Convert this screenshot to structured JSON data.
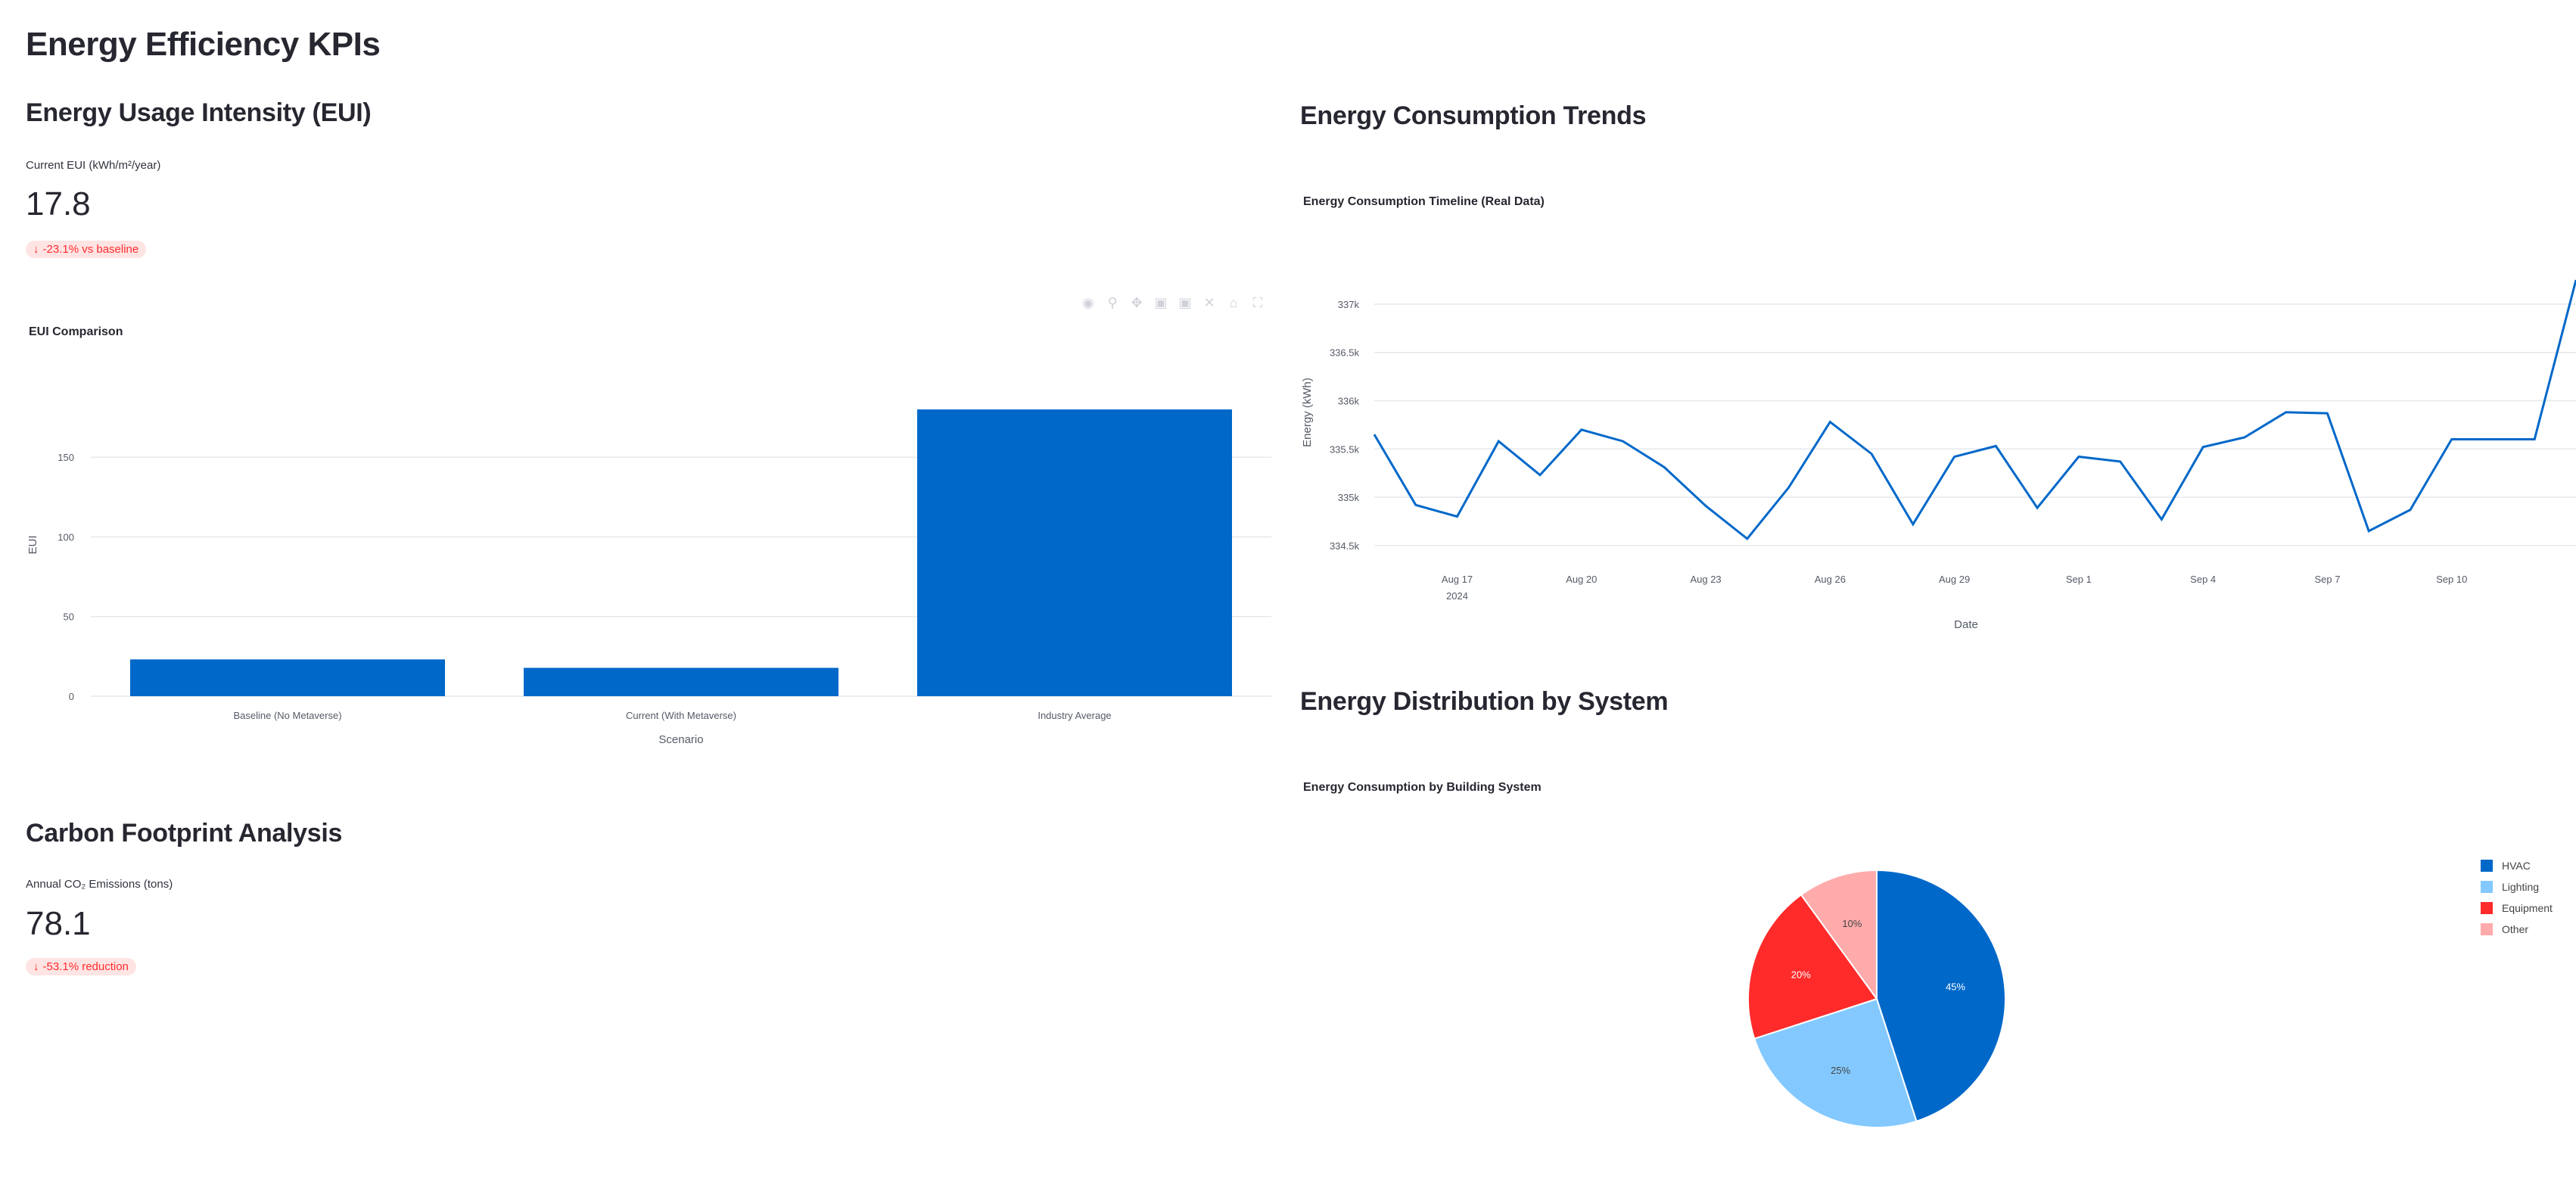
{
  "page_title": "Energy Efficiency KPIs",
  "eui_section": {
    "heading": "Energy Usage Intensity (EUI)",
    "metric_label": "Current EUI (kWh/m²/year)",
    "metric_value": "17.8",
    "delta": "-23.1% vs baseline"
  },
  "carbon_section": {
    "heading": "Carbon Footprint Analysis",
    "metric_label": "Annual CO₂ Emissions (tons)",
    "metric_value": "78.1",
    "delta": "-53.1% reduction"
  },
  "trends_section": {
    "heading": "Energy Consumption Trends"
  },
  "distribution_section": {
    "heading": "Energy Distribution by System"
  },
  "toolbar_icons": [
    "camera-icon",
    "zoom-icon",
    "pan-icon",
    "zoom-in-icon",
    "zoom-out-icon",
    "autoscale-icon",
    "reset-icon",
    "fullscreen-icon"
  ],
  "chart_data": [
    {
      "type": "bar",
      "title": "EUI Comparison",
      "xlabel": "Scenario",
      "ylabel": "EUI",
      "categories": [
        "Baseline (No Metaverse)",
        "Current (With Metaverse)",
        "Industry Average"
      ],
      "values": [
        23.1,
        17.8,
        180
      ],
      "ylim": [
        0,
        190
      ],
      "yticks": [
        0,
        50,
        100,
        150
      ],
      "ytick_labels": [
        "0",
        "50",
        "100",
        "150"
      ],
      "color": "#0068c9",
      "grid": true
    },
    {
      "type": "line",
      "title": "Energy Consumption Timeline (Real Data)",
      "xlabel": "Date",
      "ylabel": "Energy (kWh)",
      "x": [
        "2024-08-15",
        "2024-08-16",
        "2024-08-17",
        "2024-08-18",
        "2024-08-19",
        "2024-08-20",
        "2024-08-21",
        "2024-08-22",
        "2024-08-23",
        "2024-08-24",
        "2024-08-25",
        "2024-08-26",
        "2024-08-27",
        "2024-08-28",
        "2024-08-29",
        "2024-08-30",
        "2024-08-31",
        "2024-09-01",
        "2024-09-02",
        "2024-09-03",
        "2024-09-04",
        "2024-09-05",
        "2024-09-06",
        "2024-09-07",
        "2024-09-08",
        "2024-09-09",
        "2024-09-10",
        "2024-09-11",
        "2024-09-12",
        "2024-09-13"
      ],
      "y": [
        335650,
        334920,
        334800,
        335580,
        335230,
        335700,
        335580,
        335310,
        334910,
        334570,
        335100,
        335780,
        335450,
        334720,
        335420,
        335530,
        334890,
        335420,
        335370,
        334770,
        335520,
        335620,
        335880,
        335870,
        334650,
        334870,
        335600,
        335600,
        335600,
        337250
      ],
      "yticks": [
        334500,
        335000,
        335500,
        336000,
        336500,
        337000
      ],
      "ytick_labels": [
        "334.5k",
        "335k",
        "335.5k",
        "336k",
        "336.5k",
        "337k"
      ],
      "xticks": [
        "2024-08-17",
        "2024-08-20",
        "2024-08-23",
        "2024-08-26",
        "2024-08-29",
        "2024-09-01",
        "2024-09-04",
        "2024-09-07",
        "2024-09-10"
      ],
      "xtick_labels": [
        "Aug 17",
        "Aug 20",
        "Aug 23",
        "Aug 26",
        "Aug 29",
        "Sep 1",
        "Sep 4",
        "Sep 7",
        "Sep 10"
      ],
      "xtick_sublabel": "2024",
      "ylim": [
        334350,
        337250
      ],
      "color": "#0068c9",
      "grid": true
    },
    {
      "type": "pie",
      "title": "Energy Consumption by Building System",
      "labels": [
        "HVAC",
        "Lighting",
        "Equipment",
        "Other"
      ],
      "values": [
        45,
        25,
        20,
        10
      ],
      "value_labels": [
        "45%",
        "25%",
        "20%",
        "10%"
      ],
      "colors": [
        "#0068c9",
        "#83c9ff",
        "#ff2b2b",
        "#ffabab"
      ],
      "legend_position": "top-right"
    }
  ]
}
